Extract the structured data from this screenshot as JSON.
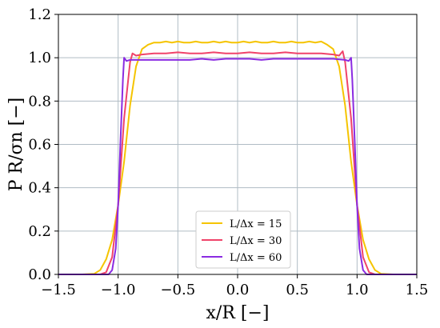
{
  "chart_data": {
    "type": "line",
    "xlabel": "x/R [−]",
    "ylabel": "P R/σn [−]",
    "xlim": [
      -1.5,
      1.5
    ],
    "ylim": [
      0.0,
      1.2
    ],
    "x_ticks": [
      -1.5,
      -1.0,
      -0.5,
      0.0,
      0.5,
      1.0,
      1.5
    ],
    "x_tick_labels": [
      "−1.5",
      "−1.0",
      "−0.5",
      "0.0",
      "0.5",
      "1.0",
      "1.5"
    ],
    "y_ticks": [
      0.0,
      0.2,
      0.4,
      0.6,
      0.8,
      1.0,
      1.2
    ],
    "y_tick_labels": [
      "0.0",
      "0.2",
      "0.4",
      "0.6",
      "0.8",
      "1.0",
      "1.2"
    ],
    "grid": true,
    "legend_position": "lower-center",
    "series": [
      {
        "name": "L/Δx = 15",
        "color": "#f5c400",
        "x": [
          -1.5,
          -1.3,
          -1.2,
          -1.15,
          -1.1,
          -1.05,
          -1.0,
          -0.95,
          -0.9,
          -0.85,
          -0.8,
          -0.75,
          -0.7,
          -0.65,
          -0.6,
          -0.55,
          -0.5,
          -0.45,
          -0.4,
          -0.35,
          -0.3,
          -0.25,
          -0.2,
          -0.15,
          -0.1,
          -0.05,
          0.0,
          0.05,
          0.1,
          0.15,
          0.2,
          0.25,
          0.3,
          0.35,
          0.4,
          0.45,
          0.5,
          0.55,
          0.6,
          0.65,
          0.7,
          0.75,
          0.8,
          0.85,
          0.9,
          0.95,
          1.0,
          1.05,
          1.1,
          1.15,
          1.2,
          1.3,
          1.5
        ],
        "y": [
          0.0,
          0.0,
          0.003,
          0.02,
          0.07,
          0.16,
          0.32,
          0.52,
          0.78,
          0.96,
          1.04,
          1.06,
          1.07,
          1.07,
          1.075,
          1.07,
          1.075,
          1.07,
          1.07,
          1.075,
          1.07,
          1.07,
          1.075,
          1.07,
          1.075,
          1.07,
          1.07,
          1.075,
          1.07,
          1.075,
          1.07,
          1.07,
          1.075,
          1.07,
          1.07,
          1.075,
          1.07,
          1.07,
          1.075,
          1.07,
          1.075,
          1.06,
          1.04,
          0.96,
          0.78,
          0.52,
          0.32,
          0.16,
          0.07,
          0.02,
          0.003,
          0.0,
          0.0
        ]
      },
      {
        "name": "L/Δx = 30",
        "color": "#f0436a",
        "x": [
          -1.5,
          -1.15,
          -1.1,
          -1.05,
          -1.0,
          -0.95,
          -0.9,
          -0.88,
          -0.85,
          -0.8,
          -0.7,
          -0.6,
          -0.5,
          -0.4,
          -0.3,
          -0.2,
          -0.1,
          0.0,
          0.1,
          0.2,
          0.3,
          0.4,
          0.5,
          0.6,
          0.7,
          0.8,
          0.85,
          0.88,
          0.9,
          0.95,
          1.0,
          1.05,
          1.1,
          1.15,
          1.5
        ],
        "y": [
          0.0,
          0.0,
          0.01,
          0.08,
          0.32,
          0.72,
          0.98,
          1.02,
          1.01,
          1.015,
          1.02,
          1.02,
          1.025,
          1.02,
          1.02,
          1.025,
          1.02,
          1.02,
          1.025,
          1.02,
          1.02,
          1.025,
          1.02,
          1.02,
          1.02,
          1.015,
          1.01,
          1.03,
          0.98,
          0.72,
          0.32,
          0.08,
          0.01,
          0.0,
          0.0
        ]
      },
      {
        "name": "L/Δx = 60",
        "color": "#8a2be2",
        "x": [
          -1.5,
          -1.08,
          -1.05,
          -1.02,
          -1.0,
          -0.98,
          -0.96,
          -0.95,
          -0.93,
          -0.9,
          -0.8,
          -0.7,
          -0.6,
          -0.5,
          -0.4,
          -0.3,
          -0.2,
          -0.1,
          0.0,
          0.1,
          0.2,
          0.3,
          0.4,
          0.5,
          0.6,
          0.7,
          0.8,
          0.9,
          0.93,
          0.95,
          0.96,
          0.98,
          1.0,
          1.02,
          1.05,
          1.08,
          1.5
        ],
        "y": [
          0.0,
          0.0,
          0.02,
          0.12,
          0.32,
          0.62,
          0.9,
          1.0,
          0.985,
          0.99,
          0.99,
          0.99,
          0.99,
          0.99,
          0.99,
          0.995,
          0.99,
          0.995,
          0.995,
          0.995,
          0.99,
          0.995,
          0.995,
          0.995,
          0.995,
          0.995,
          0.995,
          0.99,
          0.985,
          1.0,
          0.9,
          0.62,
          0.32,
          0.12,
          0.02,
          0.0,
          0.0
        ]
      }
    ]
  }
}
